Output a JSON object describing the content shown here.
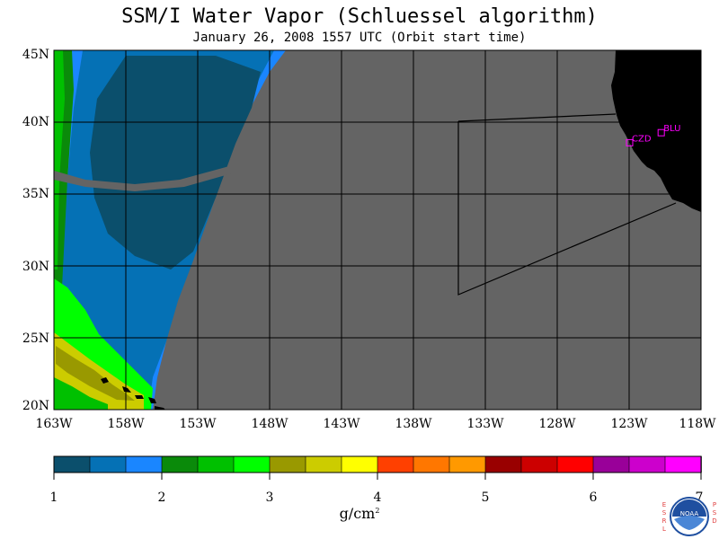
{
  "title": "SSM/I Water Vapor (Schluessel algorithm)",
  "subtitle": "January 26, 2008  1557 UTC  (Orbit start time)",
  "map": {
    "lat_labels": [
      "45N",
      "40N",
      "35N",
      "30N",
      "25N",
      "20N"
    ],
    "lon_labels": [
      "163W",
      "158W",
      "153W",
      "148W",
      "143W",
      "138W",
      "133W",
      "128W",
      "123W",
      "118W"
    ],
    "lon_range": [
      -163,
      -118
    ],
    "lat_range": [
      20,
      45
    ],
    "colors": {
      "land": "#000000",
      "no_data": "#646464",
      "grid": "#000000",
      "station_marker": "#ff00ff"
    },
    "stations": [
      {
        "label": "CZD",
        "lon": -123.0,
        "lat": 38.6
      },
      {
        "label": "BLU",
        "lon": -120.8,
        "lat": 39.3
      }
    ]
  },
  "colorbar": {
    "colors": [
      "#0b4f6c",
      "#0571b5",
      "#1a86ff",
      "#0a8a0a",
      "#00c000",
      "#00ff00",
      "#999900",
      "#cccc00",
      "#ffff00",
      "#ff4000",
      "#ff7700",
      "#ff9900",
      "#990000",
      "#cc0000",
      "#ff0000",
      "#990099",
      "#cc00cc",
      "#ff00ff"
    ],
    "tick_labels": [
      "1",
      "2",
      "3",
      "4",
      "5",
      "6",
      "7"
    ],
    "range": [
      1,
      7
    ],
    "units": "g/cm",
    "units_superscript": "2"
  },
  "logo": {
    "text": "NOAA",
    "side_left": "ESRL",
    "side_right": "PSD"
  }
}
